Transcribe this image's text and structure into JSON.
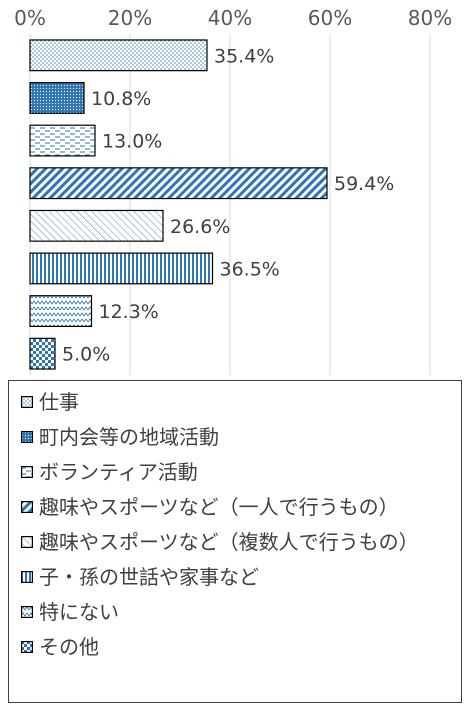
{
  "chart_data": {
    "type": "bar",
    "orientation": "horizontal",
    "categories": [
      "仕事",
      "町内会等の地域活動",
      "ボランティア活動",
      "趣味やスポーツなど（一人で行うもの）",
      "趣味やスポーツなど（複数人で行うもの）",
      "子・孫の世話や家事など",
      "特にない",
      "その他"
    ],
    "values": [
      35.4,
      10.8,
      13.0,
      59.4,
      26.6,
      36.5,
      12.3,
      5.0
    ],
    "data_labels": [
      "35.4%",
      "10.8%",
      "13.0%",
      "59.4%",
      "26.6%",
      "36.5%",
      "12.3%",
      "5.0%"
    ],
    "xlim": [
      0,
      80
    ],
    "x_ticks": [
      "0%",
      "20%",
      "40%",
      "60%",
      "80%"
    ],
    "grid": true,
    "legend_position": "bottom",
    "patterns": [
      "dots",
      "dense-dots",
      "dashes",
      "diagonal-stripes",
      "light-diagonal",
      "vertical-stripes",
      "zigzag",
      "checker"
    ],
    "colors": {
      "accent": "#2E75B6",
      "stroke": "#000000",
      "grid": "#D9D9D9"
    }
  }
}
